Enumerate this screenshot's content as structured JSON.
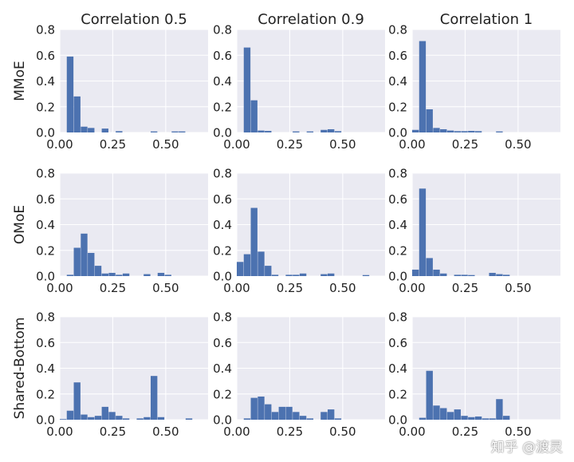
{
  "chart_data": {
    "type": "bar",
    "layout": "3x3 grid of histograms",
    "column_titles": [
      "Correlation 0.5",
      "Correlation 0.9",
      "Correlation 1"
    ],
    "row_labels": [
      "MMoE",
      "OMoE",
      "Shared-Bottom"
    ],
    "xlim": [
      0,
      0.7
    ],
    "ylim": [
      0,
      0.8
    ],
    "xticks": [
      0.0,
      0.25,
      0.5
    ],
    "xtick_labels": [
      "0.00",
      "0.25",
      "0.50"
    ],
    "yticks": [
      0.0,
      0.2,
      0.4,
      0.6,
      0.8
    ],
    "ytick_labels": [
      "0.0",
      "0.2",
      "0.4",
      "0.6",
      "0.8"
    ],
    "bin_width": 0.033,
    "series_color": "#4c72b0",
    "panel_background": "#eaeaf2",
    "grid_color": "#ffffff",
    "panels": [
      {
        "row": "MMoE",
        "col": "Correlation 0.5",
        "bin_starts": [
          0.033,
          0.066,
          0.099,
          0.132,
          0.198,
          0.264,
          0.429,
          0.528,
          0.561
        ],
        "values": [
          0.59,
          0.28,
          0.045,
          0.035,
          0.03,
          0.01,
          0.008,
          0.008,
          0.008
        ]
      },
      {
        "row": "MMoE",
        "col": "Correlation 0.9",
        "bin_starts": [
          0.033,
          0.066,
          0.099,
          0.132,
          0.264,
          0.33,
          0.396,
          0.429,
          0.462
        ],
        "values": [
          0.66,
          0.25,
          0.015,
          0.012,
          0.008,
          0.008,
          0.02,
          0.025,
          0.01
        ]
      },
      {
        "row": "MMoE",
        "col": "Correlation 1",
        "bin_starts": [
          0.0,
          0.033,
          0.066,
          0.099,
          0.132,
          0.165,
          0.198,
          0.231,
          0.264,
          0.297,
          0.396
        ],
        "values": [
          0.02,
          0.71,
          0.18,
          0.035,
          0.025,
          0.015,
          0.01,
          0.01,
          0.012,
          0.01,
          0.008
        ]
      },
      {
        "row": "OMoE",
        "col": "Correlation 0.5",
        "bin_starts": [
          0.033,
          0.066,
          0.099,
          0.132,
          0.165,
          0.198,
          0.231,
          0.264,
          0.297,
          0.396,
          0.462,
          0.495
        ],
        "values": [
          0.01,
          0.22,
          0.33,
          0.18,
          0.08,
          0.02,
          0.025,
          0.01,
          0.02,
          0.015,
          0.025,
          0.01
        ]
      },
      {
        "row": "OMoE",
        "col": "Correlation 0.9",
        "bin_starts": [
          0.0,
          0.033,
          0.066,
          0.099,
          0.132,
          0.165,
          0.231,
          0.264,
          0.297,
          0.396,
          0.429,
          0.594
        ],
        "values": [
          0.11,
          0.17,
          0.53,
          0.19,
          0.08,
          0.01,
          0.01,
          0.01,
          0.02,
          0.015,
          0.02,
          0.008
        ]
      },
      {
        "row": "OMoE",
        "col": "Correlation 1",
        "bin_starts": [
          0.0,
          0.033,
          0.066,
          0.099,
          0.132,
          0.198,
          0.231,
          0.264,
          0.363,
          0.396,
          0.429
        ],
        "values": [
          0.05,
          0.68,
          0.14,
          0.05,
          0.02,
          0.01,
          0.01,
          0.008,
          0.025,
          0.015,
          0.01
        ]
      },
      {
        "row": "Shared-Bottom",
        "col": "Correlation 0.5",
        "bin_starts": [
          0.0,
          0.033,
          0.066,
          0.099,
          0.132,
          0.165,
          0.198,
          0.231,
          0.264,
          0.297,
          0.363,
          0.396,
          0.429,
          0.462,
          0.594
        ],
        "values": [
          0.005,
          0.07,
          0.29,
          0.04,
          0.02,
          0.03,
          0.1,
          0.06,
          0.03,
          0.01,
          0.01,
          0.02,
          0.34,
          0.02,
          0.01
        ]
      },
      {
        "row": "Shared-Bottom",
        "col": "Correlation 0.9",
        "bin_starts": [
          0.033,
          0.066,
          0.099,
          0.132,
          0.165,
          0.198,
          0.231,
          0.264,
          0.297,
          0.33,
          0.396,
          0.429,
          0.462
        ],
        "values": [
          0.01,
          0.17,
          0.18,
          0.12,
          0.06,
          0.1,
          0.1,
          0.06,
          0.03,
          0.01,
          0.06,
          0.08,
          0.01
        ]
      },
      {
        "row": "Shared-Bottom",
        "col": "Correlation 1",
        "bin_starts": [
          0.033,
          0.066,
          0.099,
          0.132,
          0.165,
          0.198,
          0.231,
          0.264,
          0.297,
          0.33,
          0.363,
          0.396,
          0.429
        ],
        "values": [
          0.015,
          0.38,
          0.11,
          0.09,
          0.06,
          0.08,
          0.03,
          0.02,
          0.025,
          0.01,
          0.01,
          0.16,
          0.03
        ]
      }
    ]
  },
  "watermark": "知乎 @渡灵"
}
